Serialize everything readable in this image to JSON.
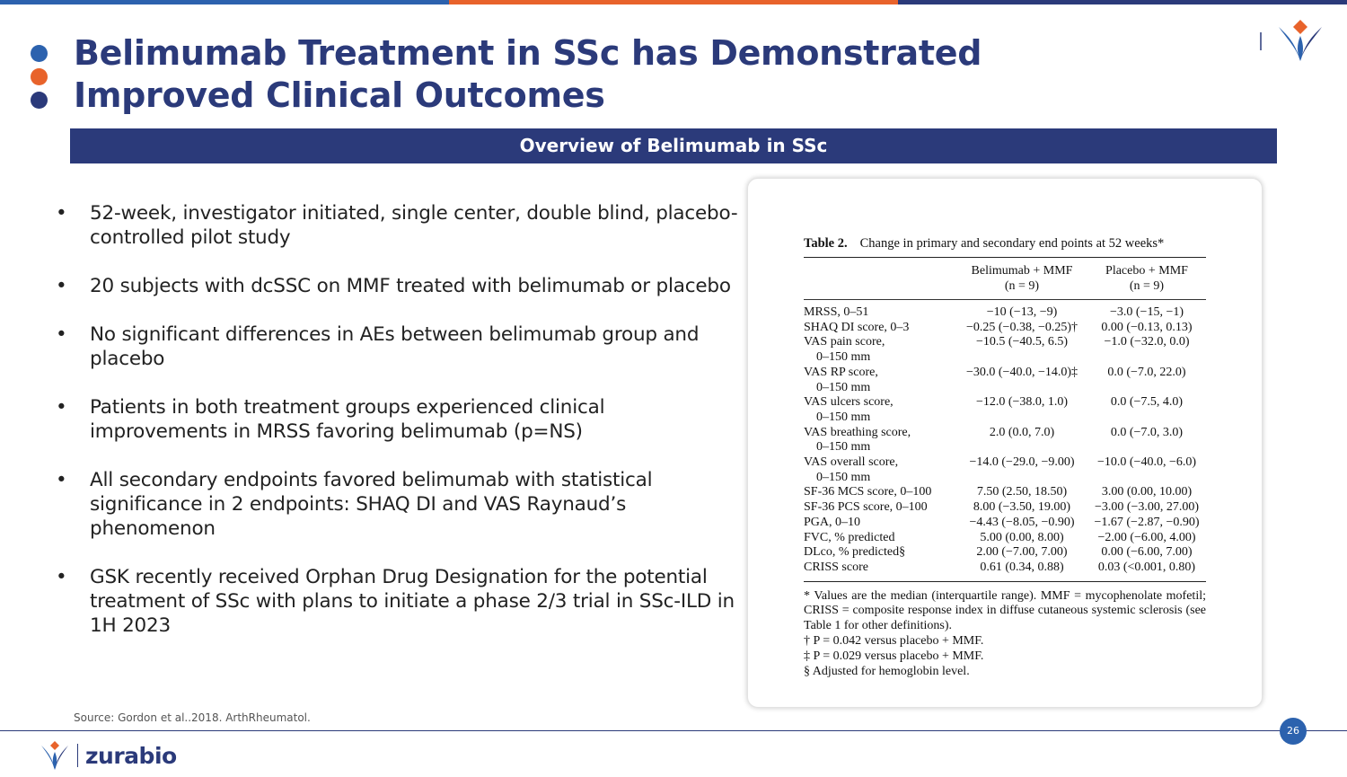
{
  "colors": {
    "navy": "#2b3a7a",
    "orange": "#e8632b",
    "blue": "#2c62ae",
    "topbar": [
      "#2c62ae",
      "#e8632b",
      "#2b3a7a"
    ]
  },
  "title": "Belimumab Treatment in SSc has Demonstrated Improved Clinical Outcomes",
  "section_header": "Overview of Belimumab in SSc",
  "bullets": [
    "52-week, investigator initiated, single center, double blind, placebo-controlled pilot study",
    "20 subjects with dcSSC on MMF treated with belimumab or placebo",
    "No significant differences in AEs between belimumab group and placebo",
    "Patients in both treatment groups experienced clinical improvements in MRSS favoring belimumab (p=NS)",
    "All secondary endpoints favored belimumab with statistical significance in 2 endpoints: SHAQ DI and VAS Raynaud’s phenomenon",
    "GSK recently received Orphan Drug Designation for the potential treatment of SSc with plans to initiate a phase 2/3 trial in SSc-ILD in 1H 2023"
  ],
  "bullet_marker": "•",
  "table": {
    "label": "Table 2.",
    "caption": "Change in primary and secondary end points at 52 weeks*",
    "col1_line1": "Belimumab + MMF",
    "col1_line2": "(n = 9)",
    "col2_line1": "Placebo + MMF",
    "col2_line2": "(n = 9)",
    "rows": [
      {
        "label": "MRSS, 0–51",
        "bel": "−10 (−13, −9)",
        "pla": "−3.0 (−15, −1)"
      },
      {
        "label": "SHAQ DI score, 0–3",
        "bel": "−0.25 (−0.38, −0.25)†",
        "pla": "0.00 (−0.13, 0.13)"
      },
      {
        "label": "VAS pain score,",
        "bel": "−10.5 (−40.5, 6.5)",
        "pla": "−1.0 (−32.0, 0.0)"
      },
      {
        "label": "0–150 mm",
        "bel": "",
        "pla": "",
        "sub": true
      },
      {
        "label": "VAS RP score,",
        "bel": "−30.0 (−40.0, −14.0)‡",
        "pla": "0.0 (−7.0, 22.0)"
      },
      {
        "label": "0–150 mm",
        "bel": "",
        "pla": "",
        "sub": true
      },
      {
        "label": "VAS ulcers score,",
        "bel": "−12.0 (−38.0, 1.0)",
        "pla": "0.0 (−7.5, 4.0)"
      },
      {
        "label": "0–150 mm",
        "bel": "",
        "pla": "",
        "sub": true
      },
      {
        "label": "VAS breathing score,",
        "bel": "2.0 (0.0, 7.0)",
        "pla": "0.0 (−7.0, 3.0)"
      },
      {
        "label": "0–150 mm",
        "bel": "",
        "pla": "",
        "sub": true
      },
      {
        "label": "VAS overall score,",
        "bel": "−14.0 (−29.0, −9.00)",
        "pla": "−10.0 (−40.0, −6.0)"
      },
      {
        "label": "0–150 mm",
        "bel": "",
        "pla": "",
        "sub": true
      },
      {
        "label": "SF-36 MCS score, 0–100",
        "bel": "7.50 (2.50, 18.50)",
        "pla": "3.00 (0.00, 10.00)"
      },
      {
        "label": "SF-36 PCS score, 0–100",
        "bel": "8.00 (−3.50, 19.00)",
        "pla": "−3.00 (−3.00, 27.00)"
      },
      {
        "label": "PGA, 0–10",
        "bel": "−4.43 (−8.05, −0.90)",
        "pla": "−1.67 (−2.87, −0.90)"
      },
      {
        "label": "FVC, % predicted",
        "bel": "5.00 (0.00, 8.00)",
        "pla": "−2.00 (−6.00, 4.00)"
      },
      {
        "label": "DLco, % predicted§",
        "bel": "2.00 (−7.00, 7.00)",
        "pla": "0.00 (−6.00, 7.00)"
      },
      {
        "label": "CRISS score",
        "bel": "0.61 (0.34, 0.88)",
        "pla": "0.03 (<0.001, 0.80)"
      }
    ],
    "footnote_main": "* Values are the median (interquartile range). MMF = mycophenolate mofetil; CRISS = composite response index in diffuse cutaneous systemic sclerosis (see Table 1 for other definitions).",
    "footnote_dagger": "† P = 0.042 versus placebo + MMF.",
    "footnote_ddagger": "‡ P = 0.029 versus placebo + MMF.",
    "footnote_section": "§ Adjusted for hemoglobin level."
  },
  "source": "Source: Gordon et al..2018. ArthRheumatol.",
  "page_number": "26",
  "brand": {
    "name": "zurabio",
    "logo_icon": "zurabio-logo-icon"
  }
}
